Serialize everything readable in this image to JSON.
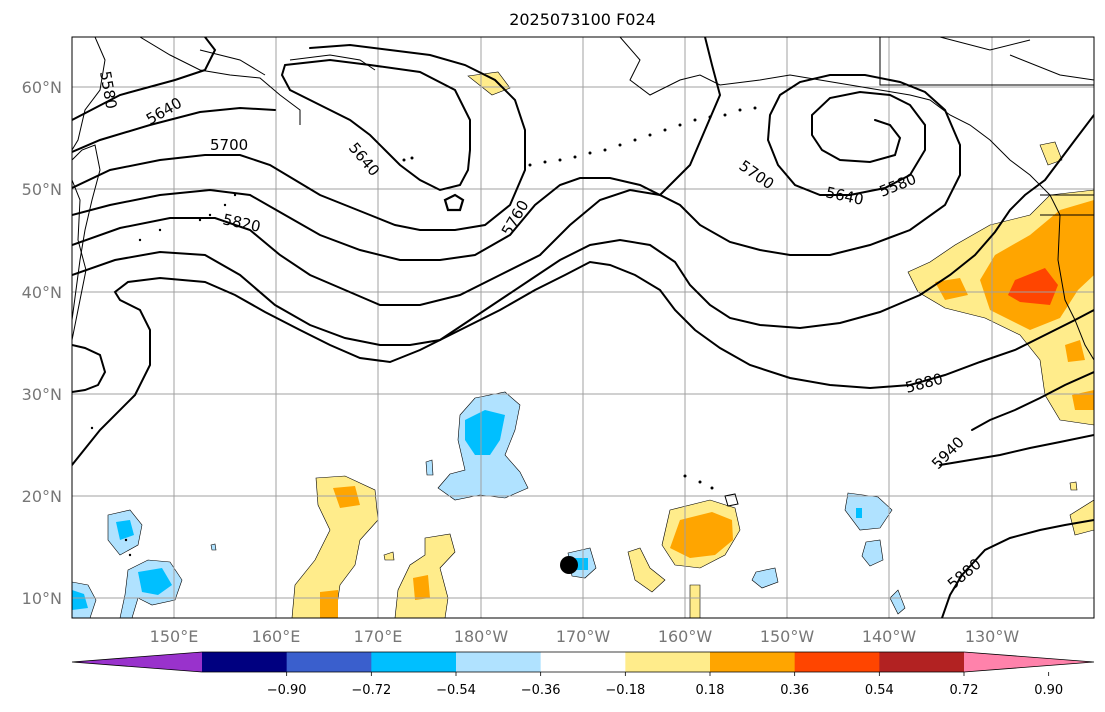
{
  "title": "2025073100 F024",
  "lat_labels": [
    "60°N",
    "50°N",
    "40°N",
    "30°N",
    "20°N",
    "10°N"
  ],
  "lon_labels": [
    "150°E",
    "160°E",
    "170°E",
    "180°W",
    "170°W",
    "160°W",
    "150°W",
    "140°W",
    "130°W"
  ],
  "contour_labels": [
    "5580",
    "5640",
    "5700",
    "5640",
    "5820",
    "5760",
    "5700",
    "5640",
    "5580",
    "5880",
    "5940",
    "5880"
  ],
  "colorbar": {
    "ticks": [
      "−0.90",
      "−0.72",
      "−0.54",
      "−0.36",
      "−0.18",
      "0.18",
      "0.36",
      "0.54",
      "0.72",
      "0.90"
    ],
    "colors": [
      "#9932cc",
      "#000080",
      "#3a5fcd",
      "#00bfff",
      "#b0e2ff",
      "#ffffff",
      "#ffec8b",
      "#ffa500",
      "#ff4500",
      "#b22222",
      "#ff82ab"
    ]
  },
  "colors": {
    "contour": "#000000",
    "grid": "#a0a0a0",
    "marker": "#000000"
  }
}
